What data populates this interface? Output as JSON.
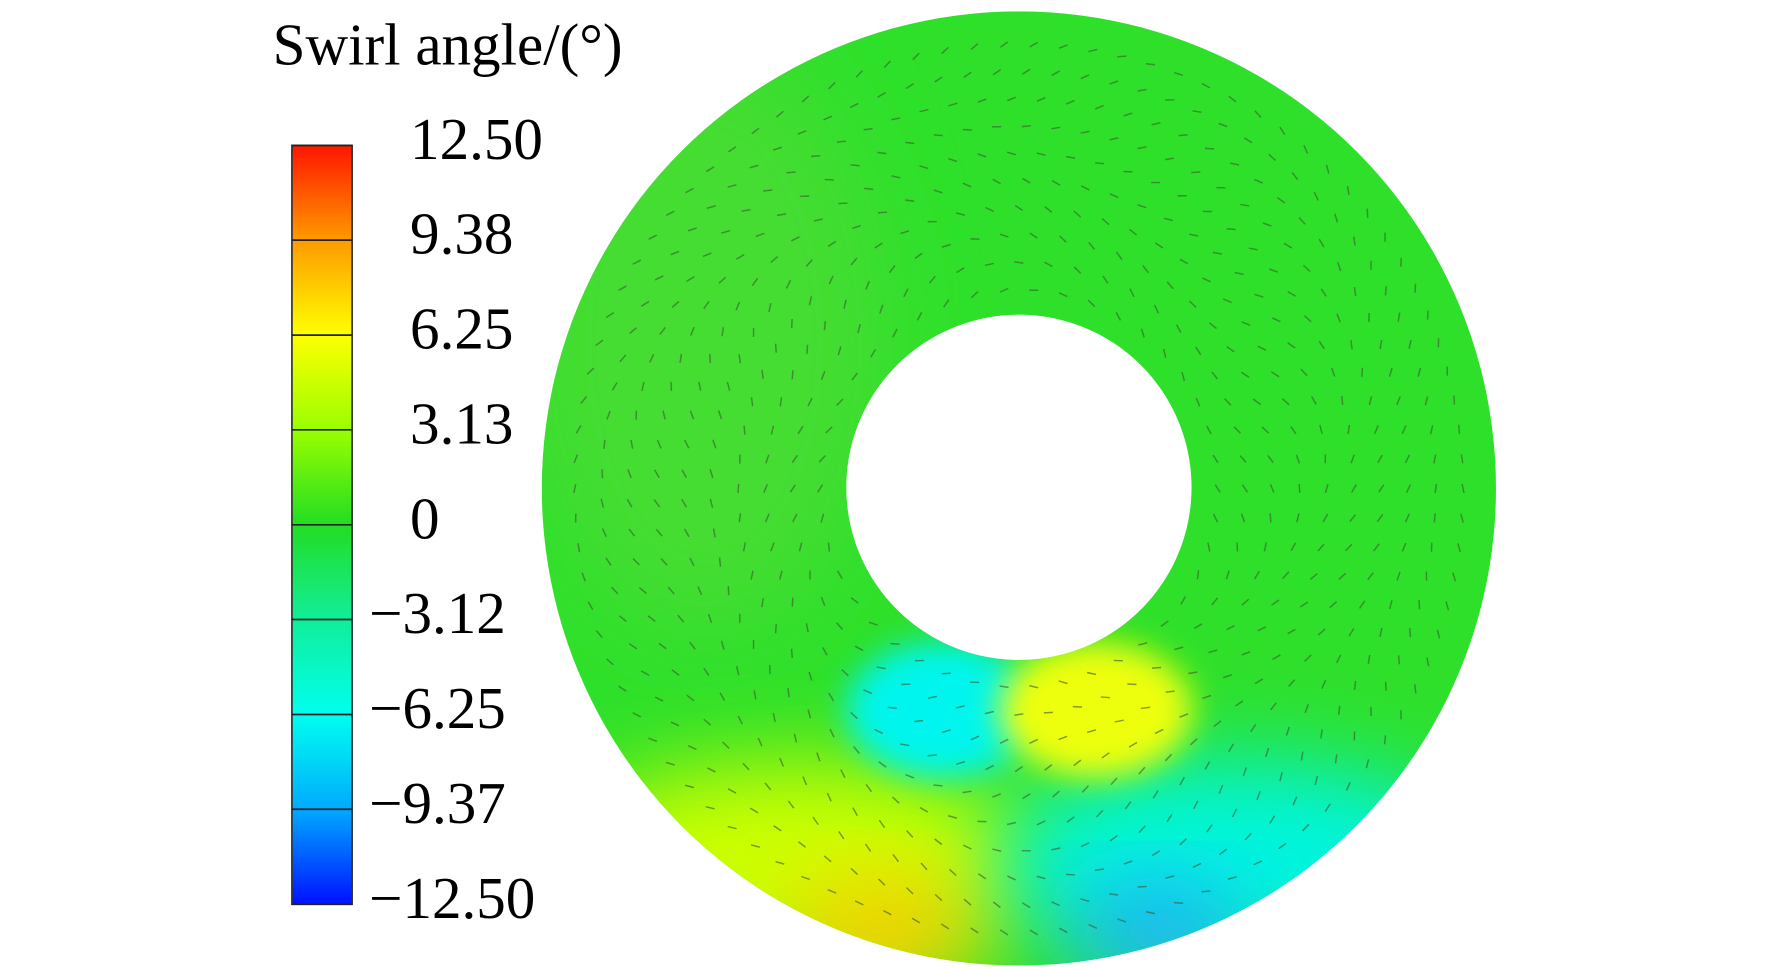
{
  "chart_data": {
    "type": "contour",
    "colorbar_title": "Swirl angle/(°)",
    "clim": [
      -12.5,
      12.5
    ],
    "ticks": [
      {
        "value": 12.5,
        "label": "12.50"
      },
      {
        "value": 9.38,
        "label": "9.38"
      },
      {
        "value": 6.25,
        "label": "6.25"
      },
      {
        "value": 3.13,
        "label": "3.13"
      },
      0,
      {
        "value": -3.12,
        "label": "−3.12"
      },
      {
        "value": -6.25,
        "label": "−6.25"
      },
      {
        "value": -9.37,
        "label": "−9.37"
      },
      {
        "value": -12.5,
        "label": "−12.50"
      }
    ],
    "colormap": [
      "#ff1500",
      "#ff9a00",
      "#ffff00",
      "#99ff00",
      "#22dd22",
      "#11ee99",
      "#00ffee",
      "#00aaff",
      "#0011ff"
    ]
  }
}
